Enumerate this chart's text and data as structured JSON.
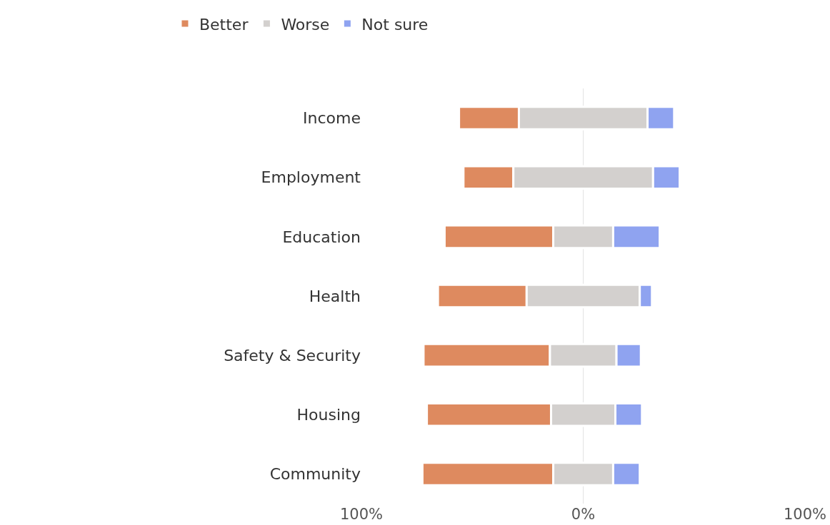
{
  "chart_data": {
    "type": "bar",
    "orientation": "horizontal",
    "categories": [
      "Income",
      "Employment",
      "Education",
      "Health",
      "Safety & Security",
      "Housing",
      "Community"
    ],
    "series": [
      {
        "name": "Better",
        "color": "#de8a5f",
        "values": [
          27,
          22.5,
          49,
          40,
          57,
          56,
          59
        ],
        "base": [
          -56,
          -54,
          -62.5,
          -65.5,
          -72,
          -70.5,
          -72.5
        ]
      },
      {
        "name": "Worse",
        "color": "#d3d0ce",
        "values": [
          58,
          63,
          27,
          51,
          30,
          29,
          27
        ],
        "base": [
          -29,
          -31.5,
          -13.5,
          -25.5,
          -15,
          -14.5,
          -13.5
        ]
      },
      {
        "name": "Not sure",
        "color": "#8fa3f0",
        "values": [
          12,
          12,
          21,
          5.5,
          11,
          12,
          12
        ],
        "base": [
          29,
          31.5,
          13.5,
          25.5,
          15,
          14.5,
          13.5
        ]
      }
    ],
    "xlim": [
      -100,
      100
    ],
    "xticks": [
      {
        "value": -100,
        "label": "100%"
      },
      {
        "value": 0,
        "label": "0%"
      },
      {
        "value": 100,
        "label": "100%"
      }
    ],
    "grid": "x",
    "legend": "top left"
  }
}
